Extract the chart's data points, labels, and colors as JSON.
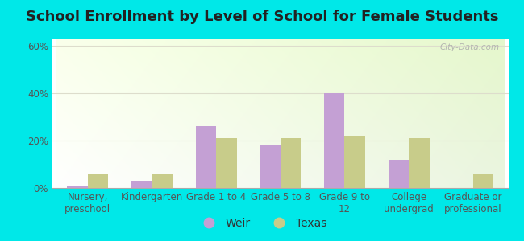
{
  "title": "School Enrollment by Level of School for Female Students",
  "categories": [
    "Nursery,\npreschool",
    "Kindergarten",
    "Grade 1 to 4",
    "Grade 5 to 8",
    "Grade 9 to\n12",
    "College\nundergrad",
    "Graduate or\nprofessional"
  ],
  "weir_values": [
    1,
    3,
    26,
    18,
    40,
    12,
    0
  ],
  "texas_values": [
    6,
    6,
    21,
    21,
    22,
    21,
    6
  ],
  "weir_color": "#c4a0d4",
  "texas_color": "#c8cc8a",
  "background_color": "#00e8e8",
  "grad_color_topleft": "#e8f8e8",
  "grad_color_topright": "#d8f0d0",
  "grad_color_bottom": "#f0fef0",
  "ylim": [
    0,
    63
  ],
  "yticks": [
    0,
    20,
    40,
    60
  ],
  "ytick_labels": [
    "0%",
    "20%",
    "40%",
    "60%"
  ],
  "bar_width": 0.32,
  "title_fontsize": 13,
  "tick_fontsize": 8.5,
  "legend_fontsize": 10,
  "watermark": "City-Data.com"
}
